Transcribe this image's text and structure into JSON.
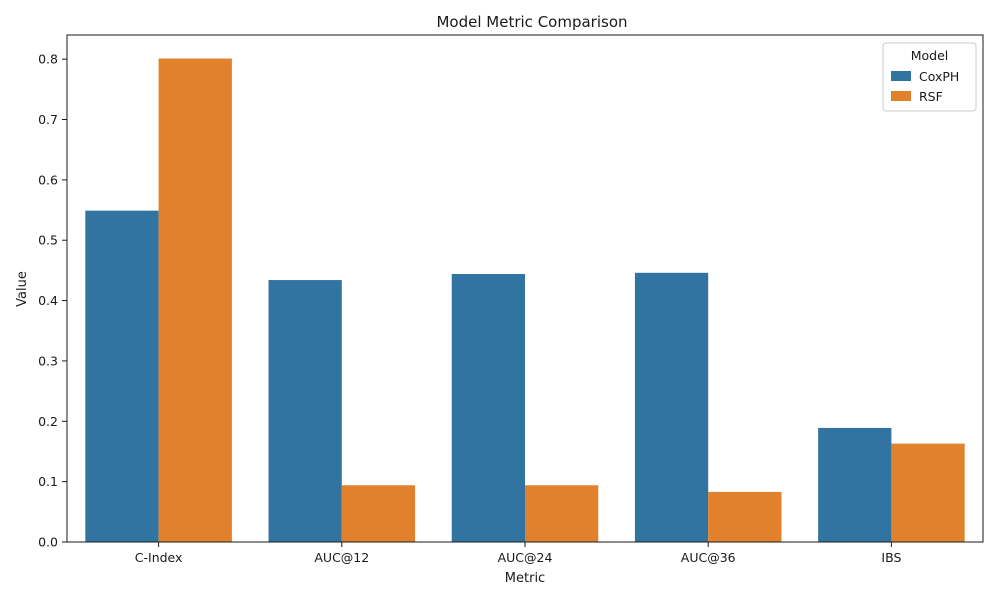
{
  "chart_data": {
    "type": "bar",
    "title": "Model Metric Comparison",
    "xlabel": "Metric",
    "ylabel": "Value",
    "categories": [
      "C-Index",
      "AUC@12",
      "AUC@24",
      "AUC@36",
      "IBS"
    ],
    "series": [
      {
        "name": "CoxPH",
        "color": "#3274a1",
        "values": [
          0.549,
          0.434,
          0.444,
          0.446,
          0.189
        ]
      },
      {
        "name": "RSF",
        "color": "#e1812c",
        "values": [
          0.801,
          0.094,
          0.094,
          0.083,
          0.163
        ]
      }
    ],
    "ylim": [
      0,
      0.84
    ],
    "yticks": [
      "0.0",
      "0.1",
      "0.2",
      "0.3",
      "0.4",
      "0.5",
      "0.6",
      "0.7",
      "0.8"
    ],
    "grid": false,
    "legend": {
      "title": "Model",
      "placement": "top-right"
    }
  }
}
